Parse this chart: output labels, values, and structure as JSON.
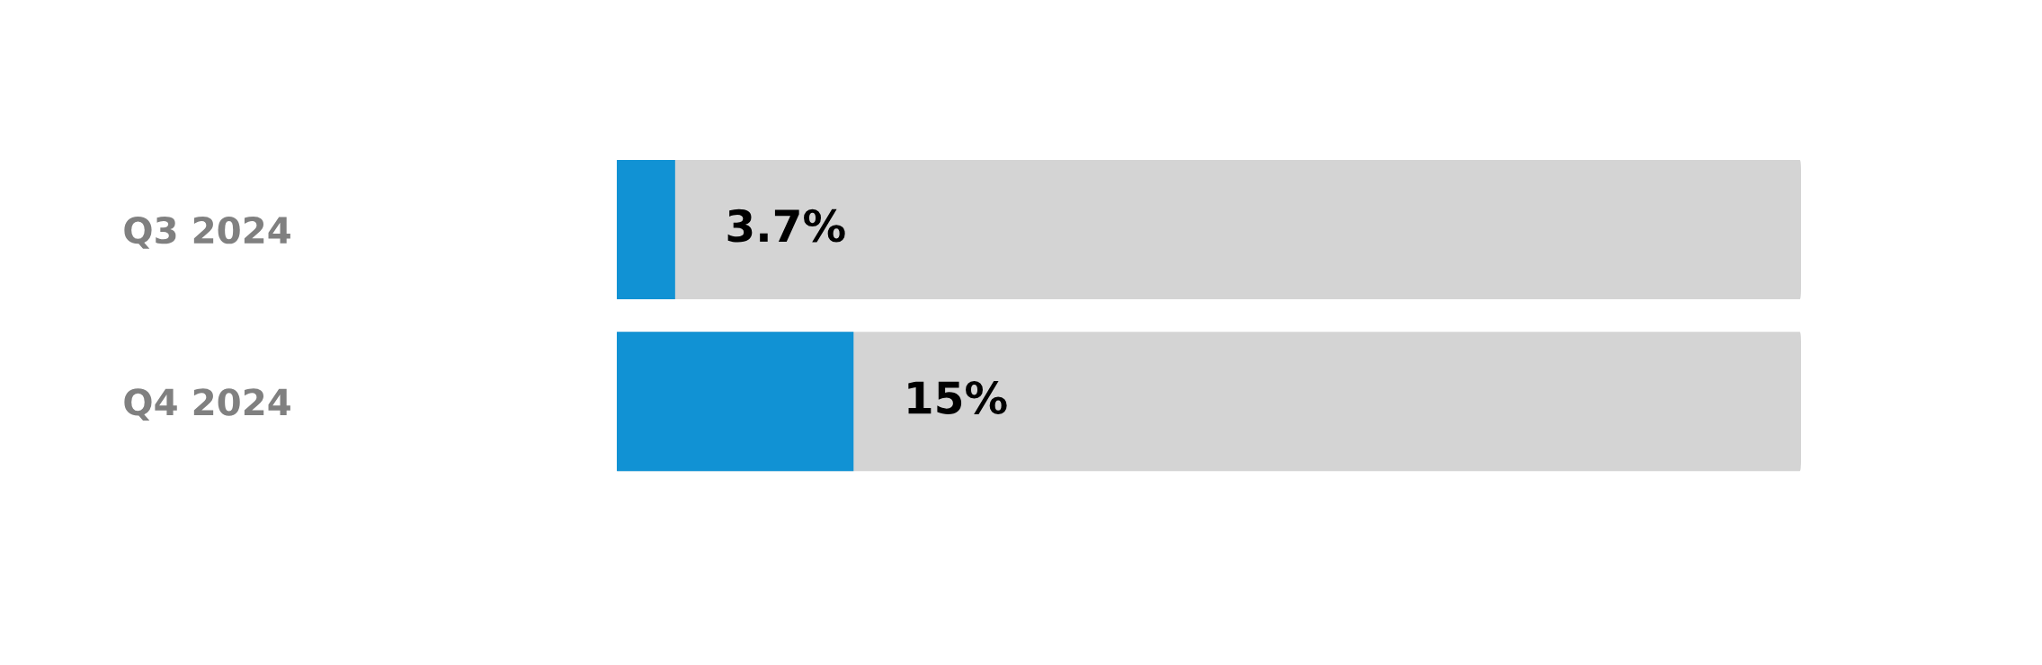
{
  "chart_data": {
    "type": "bar",
    "orientation": "horizontal",
    "categories": [
      "Q3 2024",
      "Q4 2024"
    ],
    "values": [
      3.7,
      15
    ],
    "color": "#1192d4",
    "value_labels": [
      "3.7%",
      "15%"
    ],
    "tick_labels": "y",
    "grid": false,
    "legend": false
  }
}
